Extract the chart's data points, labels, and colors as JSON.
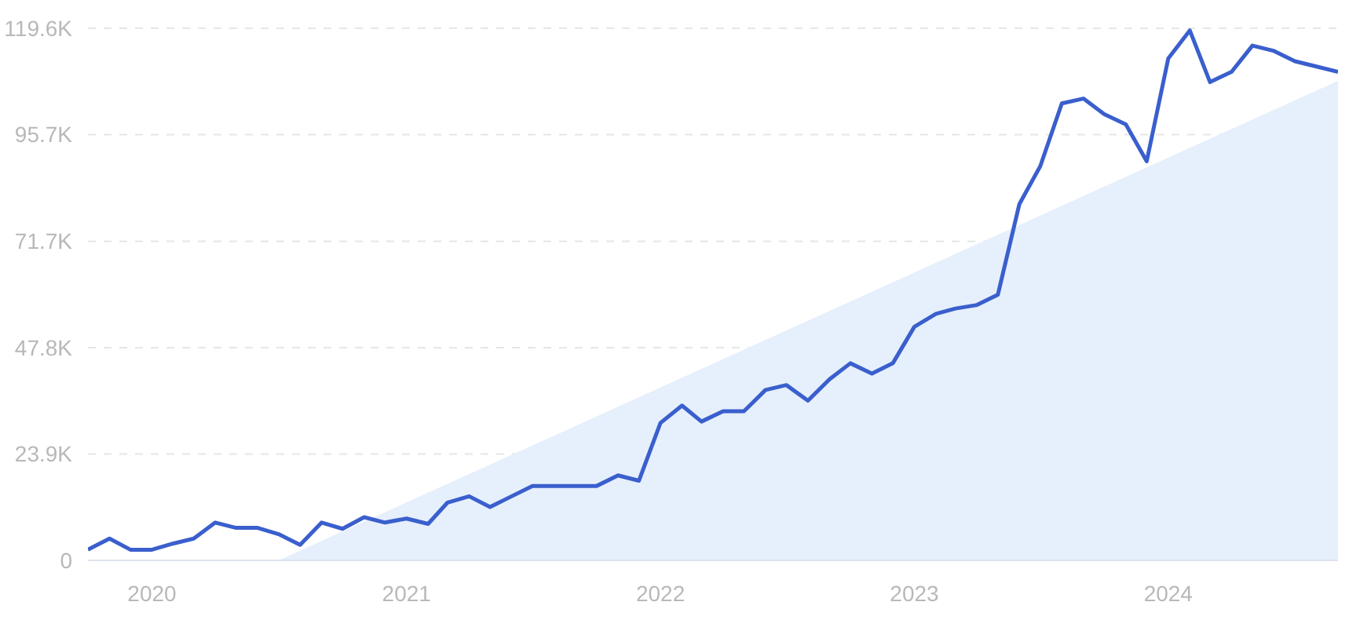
{
  "chart_data": {
    "type": "line",
    "grid": "y",
    "marker": "none",
    "line_style": "solid",
    "xlim": [
      "2019-10",
      "2024-09"
    ],
    "xticks": [
      {
        "value": "2020-01",
        "label": "2020"
      },
      {
        "value": "2021-01",
        "label": "2021"
      },
      {
        "value": "2022-01",
        "label": "2022"
      },
      {
        "value": "2023-01",
        "label": "2023"
      },
      {
        "value": "2024-01",
        "label": "2024"
      }
    ],
    "ylim": [
      0,
      119600
    ],
    "yticks": [
      0,
      {
        "value": 23900,
        "label": "23.9K"
      },
      {
        "value": 47800,
        "label": "47.8K"
      },
      {
        "value": 71700,
        "label": "71.7K"
      },
      {
        "value": 95700,
        "label": "95.7K"
      },
      {
        "value": 119600,
        "label": "119.6K"
      }
    ],
    "series": [
      {
        "type": "area",
        "color": "#e6effc",
        "x": [
          "2020-07",
          "2024-09"
        ],
        "values": [
          0,
          107800
        ]
      },
      {
        "color": "#3a5fcd",
        "x": [
          "2019-10",
          "2019-11",
          "2019-12",
          "2020-01",
          "2020-02",
          "2020-03",
          "2020-04",
          "2020-05",
          "2020-06",
          "2020-07",
          "2020-08",
          "2020-09",
          "2020-10",
          "2020-11",
          "2020-12",
          "2021-01",
          "2021-02",
          "2021-03",
          "2021-04",
          "2021-05",
          "2021-06",
          "2021-07",
          "2021-08",
          "2021-09",
          "2021-10",
          "2021-11",
          "2021-12",
          "2022-01",
          "2022-02",
          "2022-03",
          "2022-04",
          "2022-05",
          "2022-06",
          "2022-07",
          "2022-08",
          "2022-09",
          "2022-10",
          "2022-11",
          "2022-12",
          "2023-01",
          "2023-02",
          "2023-03",
          "2023-04",
          "2023-05",
          "2023-06",
          "2023-07",
          "2023-08",
          "2023-09",
          "2023-10",
          "2023-11",
          "2023-12",
          "2024-01",
          "2024-02",
          "2024-03",
          "2024-04",
          "2024-05",
          "2024-06",
          "2024-07",
          "2024-08",
          "2024-09"
        ],
        "values": [
          2400,
          4900,
          2400,
          2400,
          3800,
          4900,
          8500,
          7300,
          7300,
          5900,
          3500,
          8500,
          7100,
          9700,
          8500,
          9400,
          8200,
          13000,
          14400,
          12000,
          14400,
          16700,
          16700,
          16700,
          16700,
          19100,
          17900,
          30900,
          34800,
          31200,
          33500,
          33500,
          38300,
          39400,
          35900,
          40700,
          44300,
          42000,
          44300,
          52500,
          55400,
          56600,
          57400,
          59700,
          80100,
          88600,
          102700,
          103800,
          100300,
          98000,
          89700,
          112800,
          119100,
          107500,
          109800,
          115700,
          114500,
          112200,
          111000,
          109800
        ]
      }
    ]
  }
}
